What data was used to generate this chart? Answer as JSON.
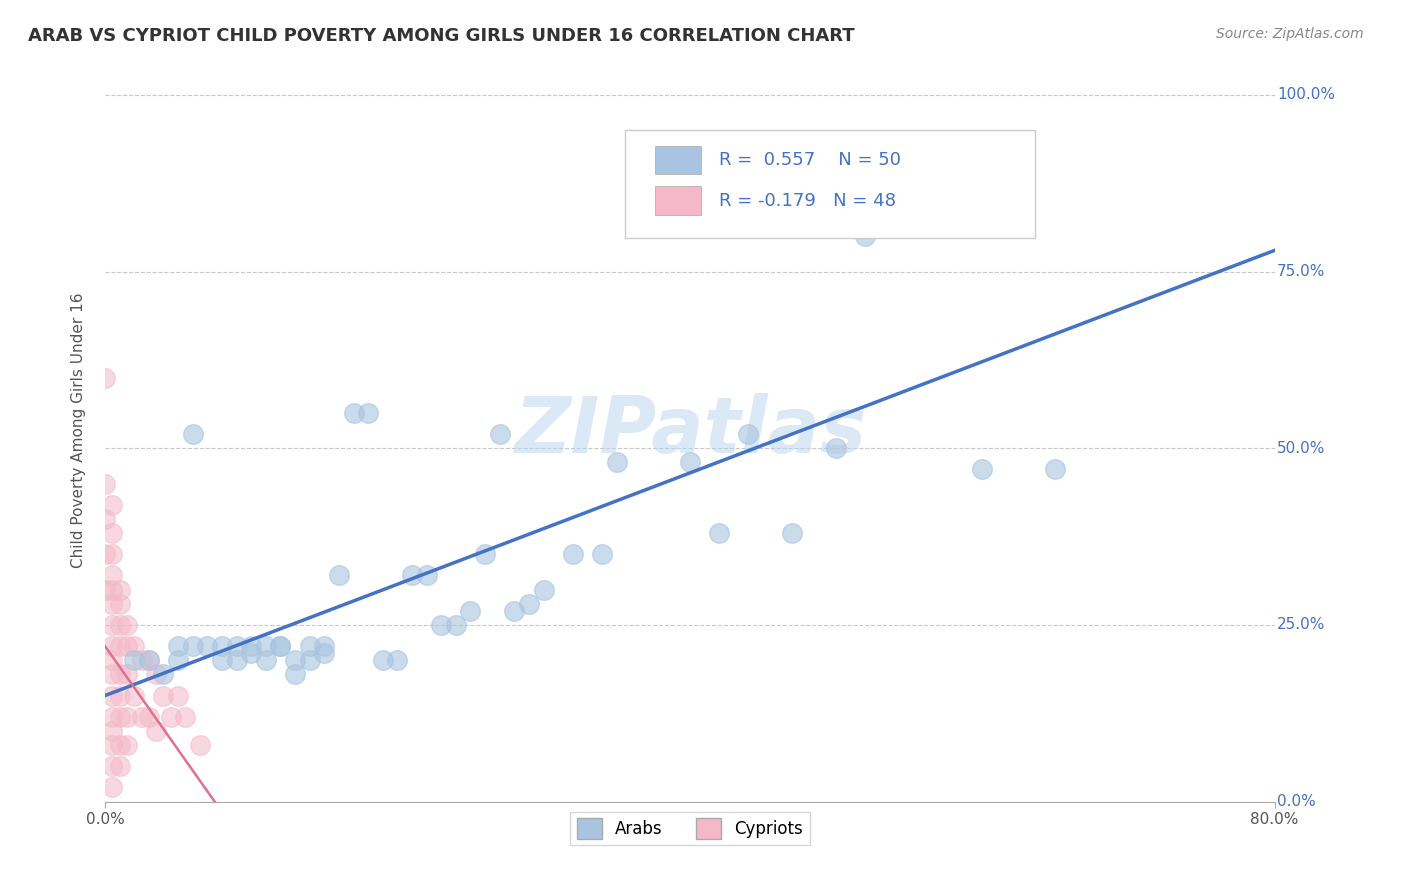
{
  "title": "ARAB VS CYPRIOT CHILD POVERTY AMONG GIRLS UNDER 16 CORRELATION CHART",
  "source": "Source: ZipAtlas.com",
  "ylabel": "Child Poverty Among Girls Under 16",
  "watermark": "ZIPatlas",
  "xlim": [
    0.0,
    0.8
  ],
  "ylim": [
    0.0,
    1.05
  ],
  "ytick_positions": [
    0.0,
    0.25,
    0.5,
    0.75,
    1.0
  ],
  "yticklabels": [
    "0.0%",
    "25.0%",
    "50.0%",
    "75.0%",
    "100.0%"
  ],
  "arab_R": 0.557,
  "arab_N": 50,
  "cypriot_R": -0.179,
  "cypriot_N": 48,
  "arab_color": "#a8c4e0",
  "cypriot_color": "#f4b8c8",
  "line_color": "#4472c4",
  "cypriot_line_color": "#e07090",
  "grid_color": "#c8c8c8",
  "arab_scatter_x": [
    0.02,
    0.03,
    0.04,
    0.05,
    0.05,
    0.06,
    0.06,
    0.07,
    0.08,
    0.08,
    0.09,
    0.09,
    0.1,
    0.1,
    0.11,
    0.11,
    0.12,
    0.12,
    0.13,
    0.13,
    0.14,
    0.14,
    0.15,
    0.15,
    0.16,
    0.17,
    0.18,
    0.19,
    0.2,
    0.21,
    0.22,
    0.23,
    0.24,
    0.25,
    0.26,
    0.27,
    0.28,
    0.29,
    0.3,
    0.32,
    0.34,
    0.35,
    0.4,
    0.42,
    0.44,
    0.47,
    0.5,
    0.52,
    0.6,
    0.65
  ],
  "arab_scatter_y": [
    0.2,
    0.2,
    0.18,
    0.22,
    0.2,
    0.22,
    0.52,
    0.22,
    0.2,
    0.22,
    0.2,
    0.22,
    0.22,
    0.21,
    0.22,
    0.2,
    0.22,
    0.22,
    0.2,
    0.18,
    0.2,
    0.22,
    0.22,
    0.21,
    0.32,
    0.55,
    0.55,
    0.2,
    0.2,
    0.32,
    0.32,
    0.25,
    0.25,
    0.27,
    0.35,
    0.52,
    0.27,
    0.28,
    0.3,
    0.35,
    0.35,
    0.48,
    0.48,
    0.38,
    0.52,
    0.38,
    0.5,
    0.8,
    0.47,
    0.47
  ],
  "cypriot_scatter_x": [
    0.0,
    0.0,
    0.0,
    0.0,
    0.0,
    0.005,
    0.005,
    0.005,
    0.005,
    0.005,
    0.005,
    0.005,
    0.005,
    0.005,
    0.005,
    0.005,
    0.005,
    0.005,
    0.005,
    0.005,
    0.005,
    0.01,
    0.01,
    0.01,
    0.01,
    0.01,
    0.01,
    0.01,
    0.01,
    0.01,
    0.015,
    0.015,
    0.015,
    0.015,
    0.015,
    0.02,
    0.02,
    0.025,
    0.025,
    0.03,
    0.03,
    0.035,
    0.035,
    0.04,
    0.045,
    0.05,
    0.055,
    0.065
  ],
  "cypriot_scatter_y": [
    0.6,
    0.45,
    0.4,
    0.35,
    0.3,
    0.42,
    0.38,
    0.35,
    0.32,
    0.3,
    0.28,
    0.25,
    0.22,
    0.2,
    0.18,
    0.15,
    0.12,
    0.1,
    0.08,
    0.05,
    0.02,
    0.3,
    0.28,
    0.25,
    0.22,
    0.18,
    0.15,
    0.12,
    0.08,
    0.05,
    0.25,
    0.22,
    0.18,
    0.12,
    0.08,
    0.22,
    0.15,
    0.2,
    0.12,
    0.2,
    0.12,
    0.18,
    0.1,
    0.15,
    0.12,
    0.15,
    0.12,
    0.08
  ],
  "arab_line_x0": 0.0,
  "arab_line_y0": 0.15,
  "arab_line_x1": 0.8,
  "arab_line_y1": 0.78,
  "cyp_line_x0": 0.0,
  "cyp_line_y0": 0.22,
  "cyp_line_x1": 0.075,
  "cyp_line_y1": 0.0
}
